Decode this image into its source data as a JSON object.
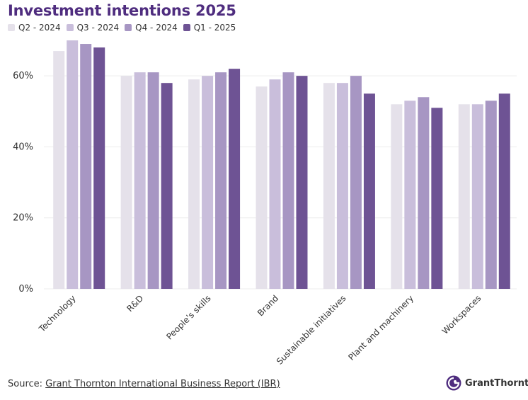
{
  "title": "Investment intentions 2025",
  "colors": {
    "title": "#4f2d7f",
    "series": [
      "#e5e1ea",
      "#c9bedb",
      "#a796c3",
      "#6e5394"
    ],
    "grid": "#ececec",
    "axis_text": "#333333"
  },
  "chart_data": {
    "type": "bar",
    "title": "Investment intentions 2025",
    "categories": [
      "Technology",
      "R&D",
      "People's skills",
      "Brand",
      "Sustainable initiatives",
      "Plant and machinery",
      "Workspaces"
    ],
    "series": [
      {
        "name": "Q2 - 2024",
        "values": [
          67,
          60,
          59,
          57,
          58,
          52,
          52
        ]
      },
      {
        "name": "Q3 - 2024",
        "values": [
          70,
          61,
          60,
          59,
          58,
          53,
          52
        ]
      },
      {
        "name": "Q4 - 2024",
        "values": [
          69,
          61,
          61,
          61,
          60,
          54,
          53
        ]
      },
      {
        "name": "Q1 - 2025",
        "values": [
          68,
          58,
          62,
          60,
          55,
          51,
          55
        ]
      }
    ],
    "yticks": [
      "0%",
      "20%",
      "40%",
      "60%"
    ],
    "ylim": [
      0,
      72
    ],
    "xlabel": "",
    "ylabel": "",
    "grid": true,
    "legend_position": "top-left"
  },
  "footer": {
    "source_label": "Source:",
    "source_link": "Grant Thornton International Business Report (IBR)"
  },
  "logo": {
    "text": "GrantThornton"
  }
}
